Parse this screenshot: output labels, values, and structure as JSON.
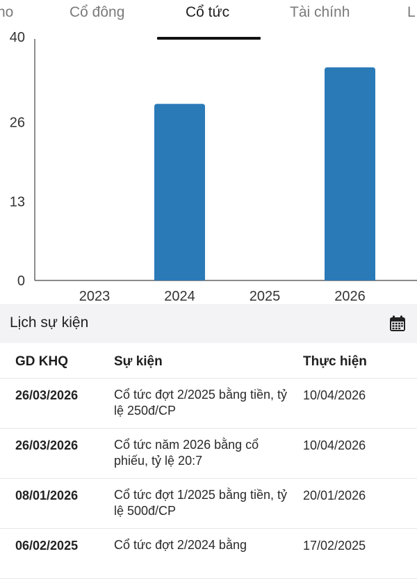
{
  "tabs": [
    {
      "label": "ho"
    },
    {
      "label": "Cổ đông"
    },
    {
      "label": "Cổ tức"
    },
    {
      "label": "Tài chính"
    },
    {
      "label": "L"
    }
  ],
  "chart_data": {
    "type": "bar",
    "categories": [
      "2023",
      "2024",
      "2025",
      "2026"
    ],
    "values": [
      0,
      29,
      0,
      35
    ],
    "yticks": [
      "0",
      "13",
      "26",
      "40"
    ],
    "ylim": [
      0,
      40
    ],
    "bar_color": "#2a7ab8",
    "grid": false
  },
  "section": {
    "title": "Lịch sự kiện",
    "icon": "calendar-icon"
  },
  "table": {
    "headers": [
      "GD KHQ",
      "Sự kiện",
      "Thực hiện"
    ],
    "rows": [
      {
        "date": "26/03/2026",
        "event": "Cổ tức đợt 2/2025 bằng tiền, tỷ lệ 250đ/CP",
        "done": "10/04/2026"
      },
      {
        "date": "26/03/2026",
        "event": "Cổ tức năm 2026 bằng cổ phiếu, tỷ lệ 20:7",
        "done": "10/04/2026"
      },
      {
        "date": "08/01/2026",
        "event": "Cổ tức đợt 1/2025 bằng tiền, tỷ lệ 500đ/CP",
        "done": "20/01/2026"
      },
      {
        "date": "06/02/2025",
        "event": "Cổ tức đợt 2/2024 bằng",
        "done": "17/02/2025"
      }
    ]
  }
}
